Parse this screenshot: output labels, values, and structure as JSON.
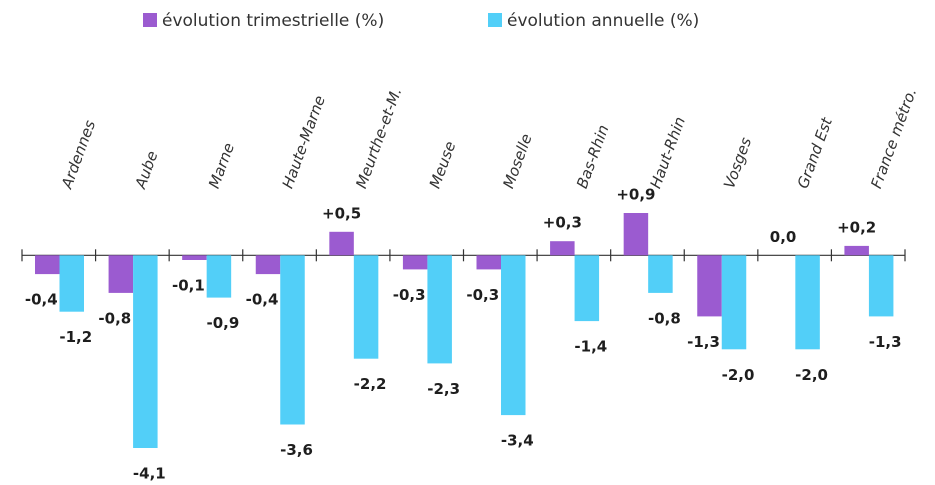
{
  "chart_data": {
    "type": "bar",
    "categories": [
      "Ardennes",
      "Aube",
      "Marne",
      "Haute-Marne",
      "Meurthe-et-M.",
      "Meuse",
      "Moselle",
      "Bas-Rhin",
      "Haut-Rhin",
      "Vosges",
      "Grand Est",
      "France métro."
    ],
    "series": [
      {
        "name": "évolution trimestrielle (%)",
        "color": "#9b5bd0",
        "values": [
          -0.4,
          -0.8,
          -0.1,
          -0.4,
          0.5,
          -0.3,
          -0.3,
          0.3,
          0.9,
          -1.3,
          0.0,
          0.2
        ],
        "value_labels": [
          "-0,4",
          "-0,8",
          "-0,1",
          "-0,4",
          "+0,5",
          "-0,3",
          "-0,3",
          "+0,3",
          "+0,9",
          "-1,3",
          "0,0",
          "+0,2"
        ]
      },
      {
        "name": "évolution annuelle (%)",
        "color": "#52cff8",
        "values": [
          -1.2,
          -4.1,
          -0.9,
          -3.6,
          -2.2,
          -2.3,
          -3.4,
          -1.4,
          -0.8,
          -2.0,
          -2.0,
          -1.3
        ],
        "value_labels": [
          "-1,2",
          "-4,1",
          "-0,9",
          "-3,6",
          "-2,2",
          "-2,3",
          "-3,4",
          "-1,4",
          "-0,8",
          "-2,0",
          "-2,0",
          "-1,3"
        ]
      }
    ],
    "legend": "top"
  }
}
